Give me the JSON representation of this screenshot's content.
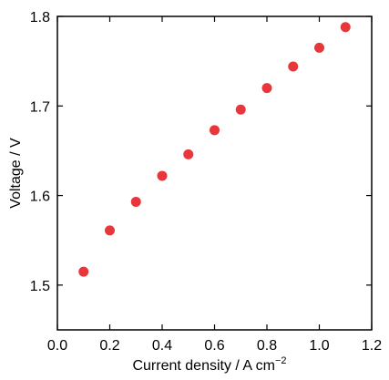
{
  "chart_data": {
    "type": "scatter",
    "title": "",
    "xlabel": "Current density / A cm",
    "xlabel_superscript": "−2",
    "ylabel": "Voltage / V",
    "xlim": [
      0.0,
      1.2
    ],
    "ylim": [
      1.45,
      1.8
    ],
    "x_ticks": [
      0.0,
      0.2,
      0.4,
      0.6,
      0.8,
      1.0,
      1.2
    ],
    "y_ticks": [
      1.5,
      1.6,
      1.7,
      1.8
    ],
    "x_tick_labels": [
      "0.0",
      "0.2",
      "0.4",
      "0.6",
      "0.8",
      "1.0",
      "1.2"
    ],
    "y_tick_labels": [
      "1.5",
      "1.6",
      "1.7",
      "1.8"
    ],
    "grid": false,
    "legend": "none",
    "marker_color": "#e8363a",
    "series": [
      {
        "x": [
          0.1,
          0.2,
          0.3,
          0.4,
          0.5,
          0.6,
          0.7,
          0.8,
          0.9,
          1.0,
          1.1
        ],
        "y": [
          1.515,
          1.561,
          1.593,
          1.622,
          1.646,
          1.673,
          1.696,
          1.72,
          1.744,
          1.765,
          1.788
        ]
      }
    ]
  }
}
